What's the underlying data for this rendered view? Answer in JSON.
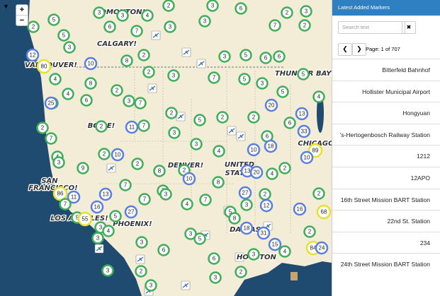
{
  "map": {
    "zoom_in": "+",
    "zoom_out": "−",
    "labels": [
      "EDMONTON!",
      "CALGARY!",
      "VANCOUVER!",
      "THUNDER BAY!",
      "BOISE!",
      "DENVER!",
      "UNITED",
      "STATES",
      "SAN",
      "FRANCISCO!",
      "LOS ANGELES!",
      "PHOENIX!",
      "DALLAS",
      "HOUSTON",
      "CHICAGO"
    ],
    "clusters": [
      3,
      3,
      4,
      2,
      3,
      6,
      3,
      2,
      5,
      6,
      7,
      3,
      3,
      7,
      2,
      2,
      5,
      3,
      12,
      80,
      10,
      2,
      8,
      3,
      5,
      6,
      6,
      4,
      2,
      3,
      7,
      5,
      3,
      5,
      4,
      8,
      2,
      3,
      7,
      5,
      4,
      2,
      25,
      6,
      20,
      13,
      2,
      5,
      2,
      2,
      6,
      33,
      2,
      2,
      11,
      7,
      3,
      6,
      7,
      3,
      4,
      2,
      10,
      4,
      10,
      18,
      89,
      10,
      3,
      9,
      2,
      2,
      8,
      10,
      13,
      20,
      4,
      2,
      7,
      8,
      86,
      11,
      13,
      7,
      3,
      7,
      7,
      4,
      7,
      27,
      2,
      2,
      16,
      27,
      5,
      3,
      12,
      16,
      68,
      5,
      55,
      5,
      8,
      3,
      4,
      18,
      31,
      2,
      3,
      5,
      3,
      3,
      84,
      24,
      4,
      15,
      6,
      3,
      6,
      2,
      3,
      2,
      3,
      3
    ]
  },
  "sidebar": {
    "title": "Latest Added Markers",
    "search_placeholder": "Search text",
    "pagination": "Page: 1 of 707",
    "items": [
      "Bitterfeld Bahnhof",
      "Hollister Municipal Airport",
      "Hongyuan",
      "'s-Hertogenbosch Railway Station",
      "1212",
      "12APO",
      "16th Street Mission BART Station",
      "22nd St. Station",
      "234",
      "24th Street Mission BART Station"
    ]
  }
}
